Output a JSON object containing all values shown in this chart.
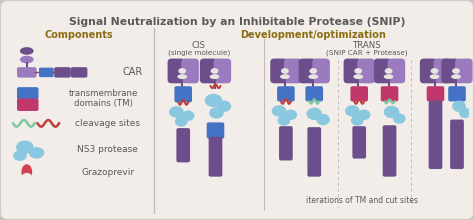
{
  "title": "Signal Neutralization by an Inhibitable Protease (SNIP)",
  "title_color": "#5a5a5a",
  "bg_color": "#f2ede8",
  "outer_bg": "#c8c4bf",
  "purple_dark": "#6b4e8a",
  "purple_light": "#9b7abf",
  "blue_tm": "#4472c4",
  "pink_tm": "#c0386b",
  "green_cleavage": "#7ec8a0",
  "red_cleavage": "#c04040",
  "light_blue_protease": "#8ac8e0",
  "components_label": "Components",
  "dev_label": "Development/optimization",
  "cis_label": "CIS",
  "cis_sub": "(single molecule)",
  "trans_label": "TRANS",
  "trans_sub": "(SNIP CAR + Protease)",
  "car_label": "CAR",
  "tm_label": "transmembrane\ndomains (TM)",
  "cleavage_label": "cleavage sites",
  "ns3_label": "NS3 protease",
  "grazo_label": "Grazoprevir",
  "iter_label": "iterations of TM and cut sites",
  "label_color": "#5a5a5a",
  "section_label_color": "#8b6e14"
}
